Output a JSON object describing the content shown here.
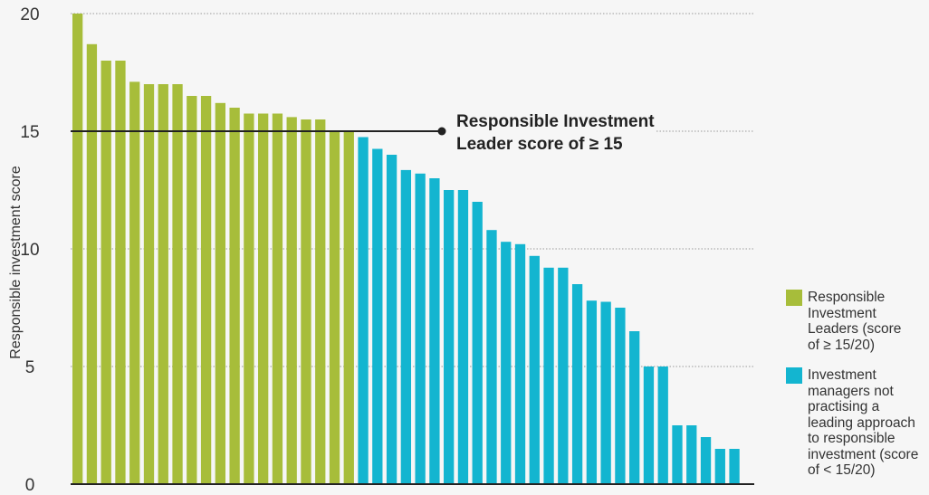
{
  "chart_data": {
    "type": "bar",
    "ylabel": "Responsible investment score",
    "ylim": [
      0,
      20
    ],
    "y_ticks": [
      "0",
      "5",
      "10",
      "15",
      "20"
    ],
    "grid": "horizontal dotted",
    "threshold": {
      "value": 15,
      "label_line1": "Responsible Investment",
      "label_line2": "Leader score of ≥ 15"
    },
    "series": [
      {
        "name": "Responsible Investment Leaders (score of ≥ 15/20)",
        "color": "#a7bd3a",
        "values": [
          20,
          18.7,
          18,
          18,
          17.1,
          17,
          17,
          17,
          16.5,
          16.5,
          16.2,
          16,
          15.75,
          15.75,
          15.75,
          15.6,
          15.5,
          15.5,
          15,
          15
        ]
      },
      {
        "name": "Investment managers not practising a leading approach to responsible investment (score of < 15/20)",
        "color": "#13b5d0",
        "values": [
          14.75,
          14.25,
          14,
          13.35,
          13.2,
          13,
          12.5,
          12.5,
          12,
          10.8,
          10.3,
          10.2,
          9.7,
          9.2,
          9.2,
          8.5,
          7.8,
          7.75,
          7.5,
          6.5,
          5,
          5,
          2.5,
          2.5,
          2,
          1.5,
          1.5
        ]
      }
    ],
    "legend_position": "right",
    "legend": [
      {
        "lines": [
          "Responsible",
          "Investment",
          "Leaders (score",
          "of ≥ 15/20)"
        ],
        "color": "#a7bd3a"
      },
      {
        "lines": [
          "Investment",
          "managers not",
          "practising a",
          "leading approach",
          "to responsible",
          "investment (score",
          "of < 15/20)"
        ],
        "color": "#13b5d0"
      }
    ]
  }
}
